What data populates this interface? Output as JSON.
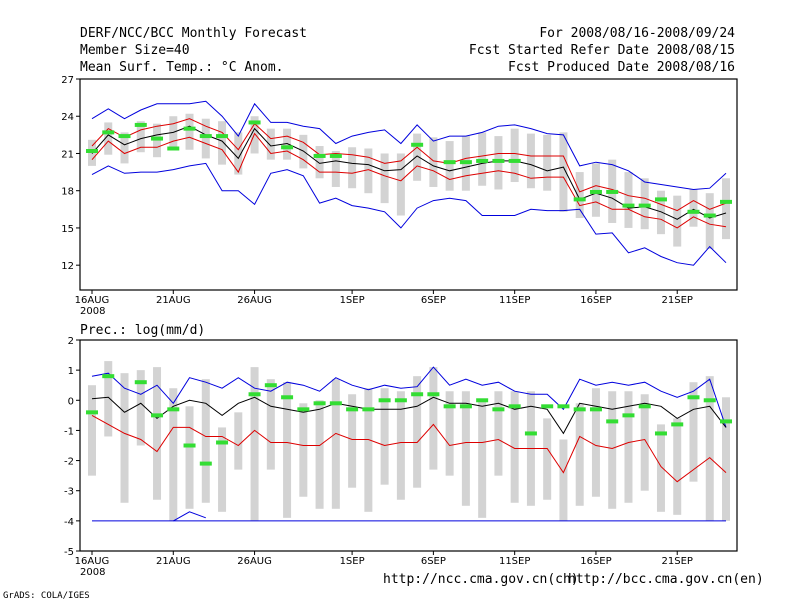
{
  "header": {
    "title": "DERF/NCC/BCC Monthly Forecast",
    "member_size": "Member Size=40",
    "variable": "Mean Surf. Temp.: °C Anom.",
    "period": "For 2008/08/16-2008/09/24",
    "started": "Fcst Started Refer Date 2008/08/15",
    "produced": "Fcst Produced Date 2008/08/16"
  },
  "footer": {
    "credit": "GrADS: COLA/IGES",
    "url_ch": "http://ncc.cma.gov.cn(ch)",
    "url_en": "http://bcc.cma.gov.cn(en)"
  },
  "colors": {
    "bars": "#d3d3d3",
    "ensemble_mean": "#000000",
    "spread": "#dd0000",
    "extremes": "#0000dd",
    "reference": "#33dd33"
  },
  "chart_data": [
    {
      "type": "line",
      "title": "Mean Surf. Temp.: °C Anom.",
      "xlabel": "",
      "ylabel": "",
      "x_days": 40,
      "x_ticks": [
        "16AUG",
        "21AUG",
        "26AUG",
        "1SEP",
        "6SEP",
        "11SEP",
        "16SEP",
        "21SEP"
      ],
      "x_tick_day": [
        0,
        5,
        10,
        16,
        21,
        26,
        31,
        36
      ],
      "x_year": "2008",
      "ylim": [
        10,
        27
      ],
      "yticks": [
        12,
        15,
        18,
        21,
        24,
        27
      ],
      "series": [
        {
          "name": "max",
          "values": [
            19.3,
            20.0,
            19.4,
            19.5,
            19.5,
            19.7,
            20.0,
            20.2,
            18.0,
            18.0,
            16.9,
            19.4,
            19.7,
            19.2,
            17.0,
            17.4,
            16.8,
            16.6,
            16.3,
            15.0,
            16.6,
            17.2,
            17.4,
            17.2,
            16.0,
            16.0,
            16.0,
            16.5,
            16.4,
            16.4,
            16.5,
            14.5,
            14.6,
            13.0,
            13.4,
            12.7,
            12.2,
            12.0,
            13.5,
            12.2
          ]
        },
        {
          "name": "mean_minus",
          "values": [
            20.5,
            22.0,
            21.0,
            21.5,
            21.5,
            22.0,
            22.3,
            21.8,
            21.3,
            19.5,
            22.6,
            21.0,
            21.2,
            20.5,
            19.5,
            19.5,
            19.4,
            19.7,
            19.2,
            18.8,
            20.0,
            19.6,
            18.9,
            19.2,
            19.4,
            19.6,
            19.4,
            19.0,
            19.1,
            19.1,
            16.8,
            17.1,
            16.5,
            16.5,
            15.9,
            15.7,
            15.0,
            15.9,
            15.3,
            15.1
          ]
        },
        {
          "name": "mean",
          "values": [
            21.0,
            22.5,
            21.7,
            22.2,
            22.5,
            22.7,
            23.2,
            22.5,
            22.0,
            20.6,
            23.0,
            21.6,
            21.8,
            21.2,
            20.2,
            20.4,
            20.2,
            20.1,
            19.6,
            19.7,
            20.8,
            20.0,
            19.6,
            19.9,
            20.2,
            20.4,
            20.4,
            20.1,
            19.6,
            19.9,
            17.3,
            17.8,
            17.4,
            16.6,
            16.7,
            16.3,
            15.7,
            16.5,
            15.8,
            16.2
          ]
        },
        {
          "name": "mean_plus",
          "values": [
            21.6,
            23.0,
            22.3,
            22.9,
            23.2,
            23.4,
            23.8,
            23.2,
            22.7,
            21.3,
            23.4,
            22.2,
            22.4,
            21.9,
            20.9,
            21.0,
            20.9,
            20.7,
            20.2,
            20.4,
            21.5,
            20.4,
            20.2,
            20.6,
            20.8,
            21.0,
            21.0,
            20.8,
            20.8,
            20.8,
            17.9,
            18.4,
            18.1,
            17.6,
            17.4,
            16.9,
            16.4,
            17.2,
            16.5,
            17.0
          ]
        },
        {
          "name": "min",
          "values": [
            23.8,
            24.6,
            23.8,
            24.5,
            25.0,
            25.0,
            25.0,
            25.2,
            24.0,
            22.4,
            25.0,
            23.5,
            23.5,
            23.2,
            23.0,
            21.8,
            22.4,
            22.7,
            22.9,
            21.8,
            23.3,
            22.0,
            22.4,
            22.4,
            22.7,
            23.2,
            23.3,
            23.0,
            22.6,
            22.5,
            20.0,
            20.3,
            20.1,
            19.6,
            18.7,
            18.5,
            18.3,
            18.1,
            18.2,
            19.4
          ]
        },
        {
          "name": "reference",
          "values": [
            21.2,
            22.7,
            22.4,
            23.3,
            22.2,
            21.4,
            23.0,
            22.4,
            22.4,
            null,
            23.5,
            null,
            21.5,
            null,
            20.8,
            20.8,
            null,
            null,
            null,
            null,
            21.7,
            null,
            20.3,
            20.3,
            20.4,
            20.4,
            20.4,
            null,
            null,
            null,
            17.3,
            17.9,
            17.9,
            16.8,
            16.8,
            17.3,
            null,
            16.3,
            16.0,
            17.1
          ]
        }
      ],
      "box_ranges": [
        [
          20.0,
          22.1
        ],
        [
          20.9,
          23.5
        ],
        [
          20.2,
          22.7
        ],
        [
          21.1,
          23.6
        ],
        [
          20.7,
          23.4
        ],
        [
          21.3,
          24.0
        ],
        [
          21.3,
          24.2
        ],
        [
          20.6,
          23.8
        ],
        [
          20.1,
          23.6
        ],
        [
          19.3,
          22.7
        ],
        [
          21.0,
          24.0
        ],
        [
          20.5,
          23.0
        ],
        [
          20.5,
          23.0
        ],
        [
          19.8,
          22.5
        ],
        [
          19.0,
          21.6
        ],
        [
          18.3,
          21.2
        ],
        [
          18.2,
          21.5
        ],
        [
          17.8,
          21.4
        ],
        [
          17.0,
          21.0
        ],
        [
          16.0,
          21.0
        ],
        [
          18.8,
          22.6
        ],
        [
          18.3,
          22.3
        ],
        [
          18.0,
          22.0
        ],
        [
          18.0,
          22.4
        ],
        [
          18.4,
          22.7
        ],
        [
          18.1,
          22.4
        ],
        [
          18.7,
          23.0
        ],
        [
          18.2,
          22.6
        ],
        [
          18.0,
          22.5
        ],
        [
          16.3,
          22.7
        ],
        [
          15.8,
          19.5
        ],
        [
          15.9,
          20.2
        ],
        [
          15.4,
          20.5
        ],
        [
          15.0,
          19.5
        ],
        [
          14.9,
          19.0
        ],
        [
          14.5,
          18.0
        ],
        [
          13.5,
          17.6
        ],
        [
          15.1,
          18.1
        ],
        [
          13.3,
          17.8
        ],
        [
          14.1,
          19.0
        ]
      ]
    },
    {
      "type": "line",
      "title": "Prec.: log(mm/d)",
      "xlabel": "",
      "ylabel": "",
      "x_days": 40,
      "x_ticks": [
        "16AUG",
        "21AUG",
        "26AUG",
        "1SEP",
        "6SEP",
        "11SEP",
        "16SEP",
        "21SEP"
      ],
      "x_tick_day": [
        0,
        5,
        10,
        16,
        21,
        26,
        31,
        36
      ],
      "x_year": "2008",
      "ylim": [
        -5,
        2
      ],
      "yticks": [
        -5,
        -4,
        -3,
        -2,
        -1,
        0,
        1,
        2
      ],
      "series": [
        {
          "name": "max",
          "values": [
            0.8,
            0.9,
            0.4,
            0.2,
            0.5,
            -0.1,
            0.75,
            0.6,
            0.4,
            0.75,
            0.4,
            0.3,
            0.6,
            0.5,
            0.3,
            0.75,
            0.5,
            0.35,
            0.5,
            0.4,
            0.45,
            1.1,
            0.5,
            0.7,
            0.5,
            0.6,
            0.3,
            0.2,
            0.2,
            -0.3,
            0.7,
            0.5,
            0.6,
            0.5,
            0.6,
            0.3,
            0.1,
            0.3,
            0.7,
            -0.9
          ]
        },
        {
          "name": "mean",
          "values": [
            0.05,
            0.1,
            -0.4,
            -0.1,
            -0.6,
            -0.2,
            0.0,
            -0.1,
            -0.5,
            -0.1,
            0.1,
            -0.2,
            -0.3,
            -0.4,
            -0.3,
            -0.1,
            -0.2,
            -0.3,
            -0.3,
            -0.3,
            -0.2,
            0.1,
            -0.1,
            -0.1,
            -0.2,
            -0.1,
            -0.3,
            -0.2,
            -0.3,
            -1.1,
            -0.1,
            -0.2,
            -0.3,
            -0.2,
            -0.1,
            -0.2,
            -0.6,
            -0.3,
            -0.2,
            -0.9
          ]
        },
        {
          "name": "mean_minus",
          "values": [
            -0.5,
            -0.8,
            -1.1,
            -1.3,
            -1.7,
            -0.9,
            -0.9,
            -1.2,
            -1.2,
            -1.5,
            -1.0,
            -1.4,
            -1.4,
            -1.5,
            -1.5,
            -1.1,
            -1.3,
            -1.3,
            -1.5,
            -1.4,
            -1.4,
            -0.8,
            -1.5,
            -1.4,
            -1.4,
            -1.3,
            -1.6,
            -1.6,
            -1.6,
            -2.4,
            -1.2,
            -1.5,
            -1.6,
            -1.4,
            -1.3,
            -2.2,
            -2.7,
            -2.3,
            -1.9,
            -2.4
          ]
        },
        {
          "name": "min",
          "values": [
            -4,
            -4,
            -4,
            -4,
            -4,
            -4,
            -4,
            -4,
            -4,
            -4,
            -4,
            -4,
            -4,
            -4,
            -4,
            -4,
            -4,
            -4,
            -4,
            -4,
            -4,
            -4,
            -4,
            -4,
            -4,
            -4,
            -4,
            -4,
            -4,
            -4,
            -4,
            -4,
            -4,
            -4,
            -4,
            -4,
            -4,
            -4,
            -4,
            -4
          ]
        },
        {
          "name": "ext_low",
          "values": [
            null,
            null,
            null,
            null,
            null,
            -4,
            -3.7,
            -3.9,
            null,
            null,
            null,
            null,
            null,
            null,
            null,
            null,
            null,
            null,
            null,
            null,
            null,
            null,
            null,
            null,
            null,
            null,
            null,
            null,
            null,
            null,
            null,
            null,
            null,
            null,
            null,
            null,
            null,
            null,
            null,
            null
          ]
        },
        {
          "name": "reference",
          "values": [
            -0.4,
            0.8,
            null,
            0.6,
            -0.5,
            -0.3,
            -1.5,
            -2.1,
            -1.4,
            null,
            0.2,
            0.5,
            0.1,
            -0.3,
            -0.1,
            -0.1,
            -0.3,
            -0.3,
            0.0,
            0.0,
            0.2,
            0.2,
            -0.2,
            -0.2,
            0.0,
            -0.3,
            -0.2,
            -1.1,
            -0.2,
            -0.2,
            -0.3,
            -0.3,
            -0.7,
            -0.5,
            -0.2,
            -1.1,
            -0.8,
            0.1,
            0.0,
            -0.7
          ]
        }
      ],
      "box_ranges": [
        [
          -2.5,
          0.5
        ],
        [
          -1.2,
          1.3
        ],
        [
          -3.4,
          0.9
        ],
        [
          -1.5,
          1.0
        ],
        [
          -3.3,
          1.1
        ],
        [
          -4.0,
          0.4
        ],
        [
          -3.6,
          -0.2
        ],
        [
          -3.4,
          0.7
        ],
        [
          -3.7,
          -0.9
        ],
        [
          -2.3,
          -0.4
        ],
        [
          -4.0,
          1.1
        ],
        [
          -2.3,
          0.7
        ],
        [
          -3.9,
          0.6
        ],
        [
          -3.2,
          -0.1
        ],
        [
          -3.6,
          0.0
        ],
        [
          -3.6,
          0.7
        ],
        [
          -2.9,
          0.2
        ],
        [
          -3.7,
          0.4
        ],
        [
          -2.8,
          0.4
        ],
        [
          -3.3,
          0.3
        ],
        [
          -2.9,
          0.8
        ],
        [
          -2.3,
          1.1
        ],
        [
          -2.5,
          0.3
        ],
        [
          -3.5,
          0.3
        ],
        [
          -3.9,
          0.0
        ],
        [
          -2.5,
          0.3
        ],
        [
          -3.4,
          0.3
        ],
        [
          -3.5,
          0.3
        ],
        [
          -3.3,
          -0.6
        ],
        [
          -4.0,
          -1.3
        ],
        [
          -3.5,
          -0.1
        ],
        [
          -3.2,
          0.4
        ],
        [
          -3.6,
          0.3
        ],
        [
          -3.4,
          0.3
        ],
        [
          -3.0,
          0.2
        ],
        [
          -3.7,
          -0.8
        ],
        [
          -3.8,
          -0.6
        ],
        [
          -2.7,
          0.6
        ],
        [
          -4.0,
          0.8
        ],
        [
          -4.0,
          0.1
        ]
      ]
    }
  ]
}
